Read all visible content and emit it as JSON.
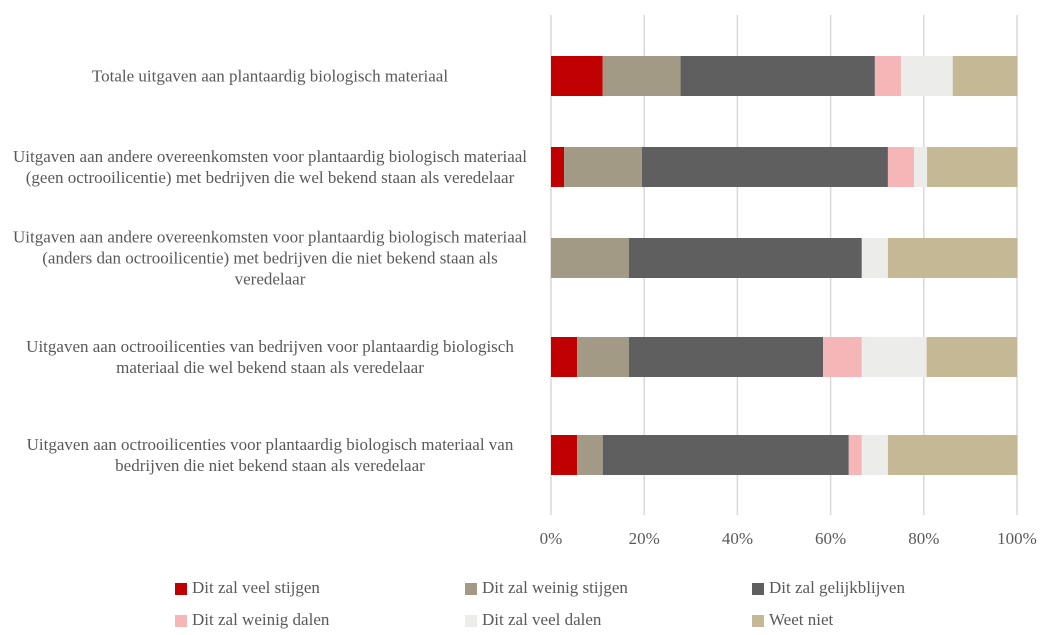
{
  "chart_data": {
    "type": "stacked-barh",
    "categories": [
      "Totale uitgaven aan plantaardig biologisch materiaal",
      "Uitgaven aan andere overeenkomsten voor plantaardig biologisch materiaal (geen octrooilicentie) met bedrijven die wel bekend staan als veredelaar",
      "Uitgaven aan andere overeenkomsten voor plantaardig biologisch materiaal (anders dan octrooilicentie) met bedrijven die niet bekend staan als veredelaar",
      "Uitgaven aan octrooilicenties van bedrijven voor plantaardig biologisch materiaal die wel bekend staan als veredelaar",
      "Uitgaven aan octrooilicenties voor plantaardig biologisch materiaal van bedrijven die niet bekend staan als veredelaar"
    ],
    "series": [
      {
        "name": "Dit zal veel stijgen",
        "color": "#c00000",
        "values": [
          11.1,
          2.8,
          0,
          5.6,
          5.6
        ]
      },
      {
        "name": "Dit zal weinig stijgen",
        "color": "#a39a86",
        "values": [
          16.7,
          16.7,
          16.7,
          11.1,
          5.5
        ]
      },
      {
        "name": "Dit zal gelijkblijven",
        "color": "#5f5f5f",
        "values": [
          41.7,
          52.8,
          50,
          41.7,
          52.8
        ]
      },
      {
        "name": "Dit zal weinig dalen",
        "color": "#f4b6b6",
        "values": [
          5.6,
          5.6,
          0,
          8.3,
          2.8
        ]
      },
      {
        "name": "Dit zal veel dalen",
        "color": "#ececea",
        "values": [
          11.1,
          2.8,
          5.6,
          13.9,
          5.6
        ]
      },
      {
        "name": "Weet niet",
        "color": "#c4b994",
        "values": [
          13.9,
          19.4,
          27.8,
          19.4,
          27.8
        ]
      }
    ],
    "xlim": [
      0,
      100
    ],
    "xticks": [
      {
        "value": 0,
        "label": "0%"
      },
      {
        "value": 20,
        "label": "20%"
      },
      {
        "value": 40,
        "label": "40%"
      },
      {
        "value": 60,
        "label": "60%"
      },
      {
        "value": 80,
        "label": "80%"
      },
      {
        "value": 100,
        "label": "100%"
      }
    ],
    "grid": true
  }
}
